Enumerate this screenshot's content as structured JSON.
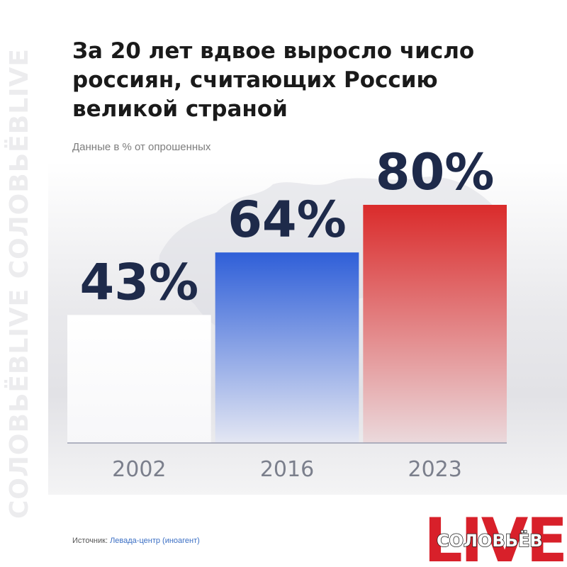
{
  "watermark": "СОЛОВЬЁВLIVE СОЛОВЬЁВLIVE",
  "title_lines": [
    "За 20 лет вдвое выросло число",
    "россиян, считающих Россию",
    "великой страной"
  ],
  "subtitle": "Данные в % от опрошенных",
  "source": {
    "prefix": "Источник: ",
    "name": "Левада-центр (иноагент)"
  },
  "logo": {
    "big": "LIVE",
    "name": "СОЛОВЬЁВ"
  },
  "chart_data": {
    "type": "bar",
    "categories": [
      "2002",
      "2016",
      "2023"
    ],
    "values": [
      43,
      64,
      80
    ],
    "value_labels": [
      "43%",
      "64%",
      "80%"
    ],
    "title": "За 20 лет вдвое выросло число россиян, считающих Россию великой страной",
    "subtitle": "Данные в % от опрошенных",
    "xlabel": "",
    "ylabel": "",
    "ylim": [
      0,
      100
    ],
    "grid": false,
    "legend": "none",
    "colors": [
      "#ffffff",
      "#2f5fd8",
      "#da2b2b"
    ]
  }
}
